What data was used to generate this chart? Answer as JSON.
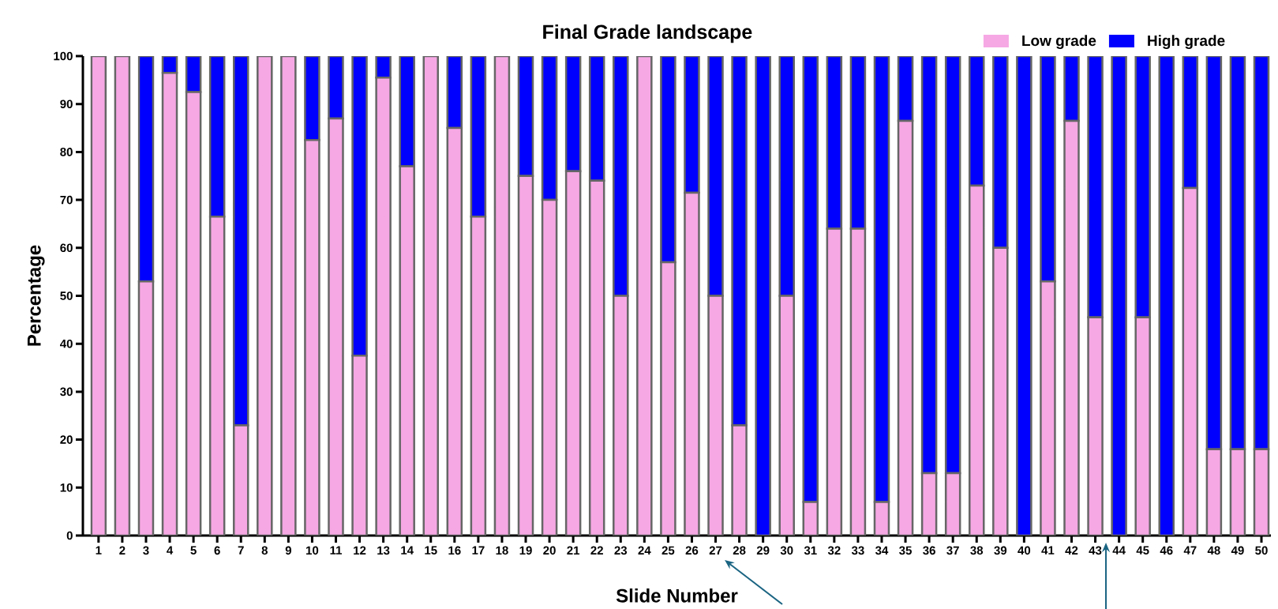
{
  "chart_data": {
    "type": "bar",
    "title": "Final Grade landscape",
    "xlabel": "Slide Number",
    "ylabel": "Percentage",
    "categories": [
      "1",
      "2",
      "3",
      "4",
      "5",
      "6",
      "7",
      "8",
      "9",
      "10",
      "11",
      "12",
      "13",
      "14",
      "15",
      "16",
      "17",
      "18",
      "19",
      "20",
      "21",
      "22",
      "23",
      "24",
      "25",
      "26",
      "27",
      "28",
      "29",
      "30",
      "31",
      "32",
      "33",
      "34",
      "35",
      "36",
      "37",
      "38",
      "39",
      "40",
      "41",
      "42",
      "43",
      "44",
      "45",
      "46",
      "47",
      "48",
      "49",
      "50"
    ],
    "stacked": true,
    "ylim": [
      0,
      100
    ],
    "yticks": [
      0,
      10,
      20,
      30,
      40,
      50,
      60,
      70,
      80,
      90,
      100
    ],
    "legend": "top right",
    "series": [
      {
        "name": "Low grade",
        "color": "#f6a8e4",
        "values": [
          100,
          100,
          53,
          96.5,
          92.5,
          66.5,
          23,
          100,
          100,
          82.5,
          87,
          37.5,
          95.5,
          77,
          100,
          85,
          66.5,
          100,
          75,
          70,
          76,
          74,
          50,
          100,
          57,
          71.5,
          50,
          23,
          0,
          50,
          7,
          64,
          64,
          7,
          86.5,
          13,
          13,
          73,
          60,
          0,
          53,
          86.5,
          45.5,
          0,
          45.5,
          0,
          72.5,
          18,
          18,
          18
        ]
      },
      {
        "name": "High grade",
        "color": "#0000ff",
        "values": [
          0,
          0,
          47,
          3.5,
          7.5,
          33.5,
          77,
          0,
          0,
          17.5,
          13,
          62.5,
          4.5,
          23,
          0,
          15,
          33.5,
          0,
          25,
          30,
          24,
          26,
          50,
          0,
          43,
          28.5,
          50,
          77,
          100,
          50,
          93,
          36,
          36,
          93,
          13.5,
          87,
          87,
          27,
          40,
          100,
          47,
          13.5,
          54.5,
          100,
          54.5,
          100,
          27.5,
          82,
          82,
          82
        ]
      }
    ]
  }
}
